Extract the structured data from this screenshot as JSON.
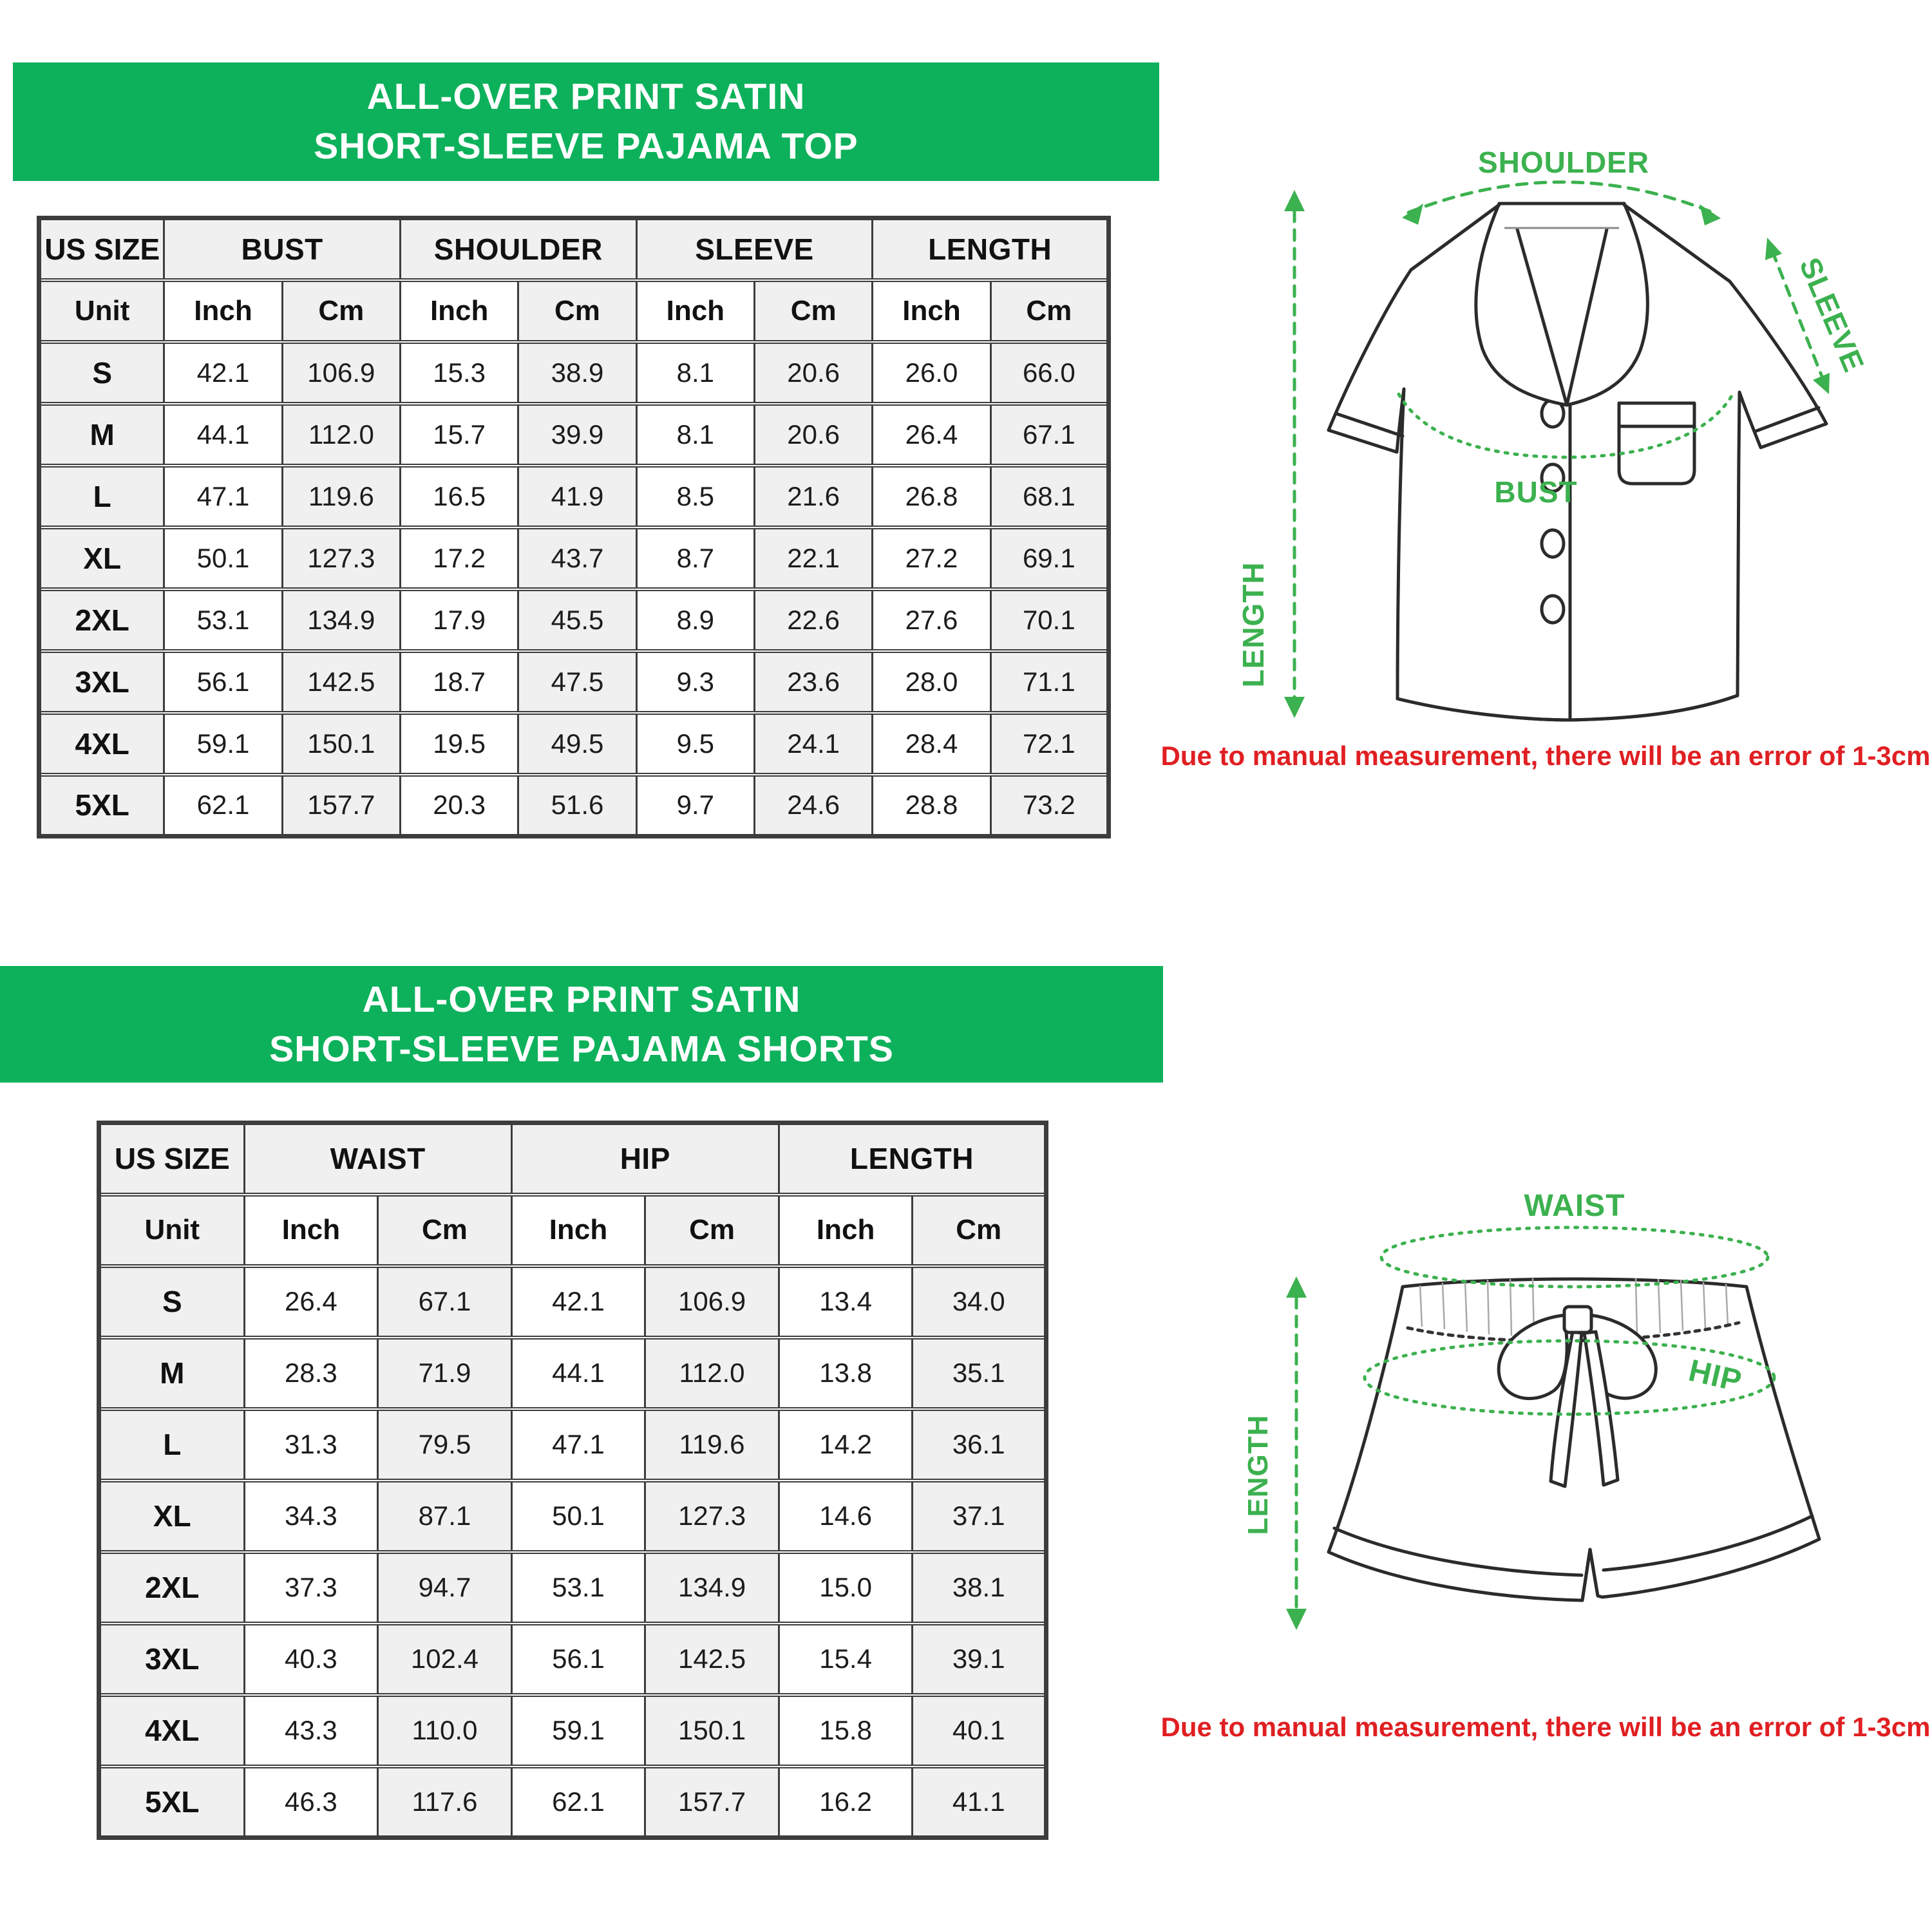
{
  "colors": {
    "brand_green": "#0db15b",
    "diagram_label_green": "#3cb14f",
    "note_red": "#e01f22",
    "table_border": "#3d3d3d",
    "cell_gray": "#f0f0f0"
  },
  "top_section": {
    "title_line1": "ALL-OVER PRINT SATIN",
    "title_line2": "SHORT-SLEEVE PAJAMA TOP",
    "table": {
      "size_header": "US SIZE",
      "unit_label": "Unit",
      "inch_label": "Inch",
      "cm_label": "Cm",
      "groups": [
        "BUST",
        "SHOULDER",
        "SLEEVE",
        "LENGTH"
      ],
      "rows": [
        {
          "size": "S",
          "values": [
            "42.1",
            "106.9",
            "15.3",
            "38.9",
            "8.1",
            "20.6",
            "26.0",
            "66.0"
          ]
        },
        {
          "size": "M",
          "values": [
            "44.1",
            "112.0",
            "15.7",
            "39.9",
            "8.1",
            "20.6",
            "26.4",
            "67.1"
          ]
        },
        {
          "size": "L",
          "values": [
            "47.1",
            "119.6",
            "16.5",
            "41.9",
            "8.5",
            "21.6",
            "26.8",
            "68.1"
          ]
        },
        {
          "size": "XL",
          "values": [
            "50.1",
            "127.3",
            "17.2",
            "43.7",
            "8.7",
            "22.1",
            "27.2",
            "69.1"
          ]
        },
        {
          "size": "2XL",
          "values": [
            "53.1",
            "134.9",
            "17.9",
            "45.5",
            "8.9",
            "22.6",
            "27.6",
            "70.1"
          ]
        },
        {
          "size": "3XL",
          "values": [
            "56.1",
            "142.5",
            "18.7",
            "47.5",
            "9.3",
            "23.6",
            "28.0",
            "71.1"
          ]
        },
        {
          "size": "4XL",
          "values": [
            "59.1",
            "150.1",
            "19.5",
            "49.5",
            "9.5",
            "24.1",
            "28.4",
            "72.1"
          ]
        },
        {
          "size": "5XL",
          "values": [
            "62.1",
            "157.7",
            "20.3",
            "51.6",
            "9.7",
            "24.6",
            "28.8",
            "73.2"
          ]
        }
      ]
    },
    "diagram": {
      "labels": {
        "shoulder": "SHOULDER",
        "sleeve": "SLEEVE",
        "length": "LENGTH",
        "bust": "BUST"
      }
    },
    "note": "Due to manual measurement, there will be an error of 1-3cm"
  },
  "bottom_section": {
    "title_line1": "ALL-OVER PRINT SATIN",
    "title_line2": "SHORT-SLEEVE PAJAMA SHORTS",
    "table": {
      "size_header": "US SIZE",
      "unit_label": "Unit",
      "inch_label": "Inch",
      "cm_label": "Cm",
      "groups": [
        "WAIST",
        "HIP",
        "LENGTH"
      ],
      "rows": [
        {
          "size": "S",
          "values": [
            "26.4",
            "67.1",
            "42.1",
            "106.9",
            "13.4",
            "34.0"
          ]
        },
        {
          "size": "M",
          "values": [
            "28.3",
            "71.9",
            "44.1",
            "112.0",
            "13.8",
            "35.1"
          ]
        },
        {
          "size": "L",
          "values": [
            "31.3",
            "79.5",
            "47.1",
            "119.6",
            "14.2",
            "36.1"
          ]
        },
        {
          "size": "XL",
          "values": [
            "34.3",
            "87.1",
            "50.1",
            "127.3",
            "14.6",
            "37.1"
          ]
        },
        {
          "size": "2XL",
          "values": [
            "37.3",
            "94.7",
            "53.1",
            "134.9",
            "15.0",
            "38.1"
          ]
        },
        {
          "size": "3XL",
          "values": [
            "40.3",
            "102.4",
            "56.1",
            "142.5",
            "15.4",
            "39.1"
          ]
        },
        {
          "size": "4XL",
          "values": [
            "43.3",
            "110.0",
            "59.1",
            "150.1",
            "15.8",
            "40.1"
          ]
        },
        {
          "size": "5XL",
          "values": [
            "46.3",
            "117.6",
            "62.1",
            "157.7",
            "16.2",
            "41.1"
          ]
        }
      ]
    },
    "diagram": {
      "labels": {
        "waist": "WAIST",
        "hip": "HIP",
        "length": "LENGTH"
      }
    },
    "note": "Due to manual measurement, there will be an error of 1-3cm"
  }
}
